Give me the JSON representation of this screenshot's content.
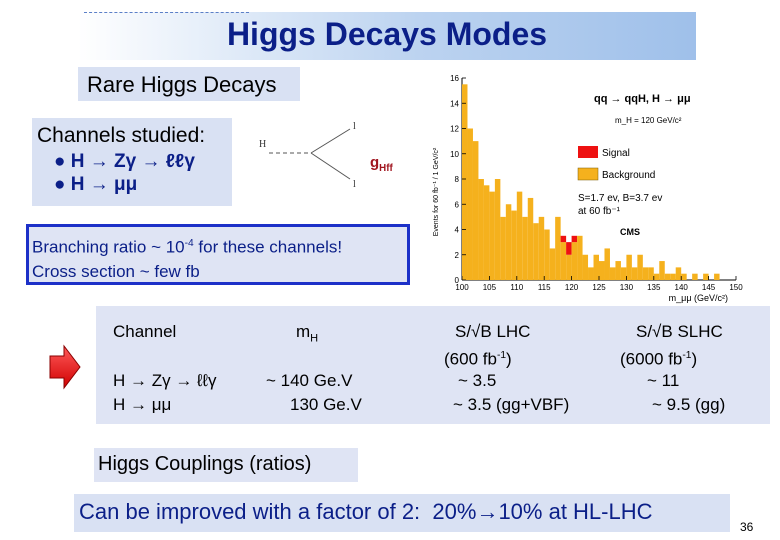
{
  "header": {
    "title": "Higgs Decays Modes"
  },
  "rare_label": "Rare Higgs Decays",
  "channels": {
    "title": "Channels studied:",
    "items": [
      "H → Zγ → ℓℓγ",
      "H → μμ"
    ]
  },
  "feynman": {
    "incoming": "H",
    "out_top": "l",
    "out_bottom": "l",
    "coupling": "g",
    "coupling_sub": "Hff"
  },
  "branching": {
    "line1_a": "Branching ratio ~ 10",
    "line1_exp": "-4",
    "line1_b": " for these channels!",
    "line2": "Cross section ~ few fb"
  },
  "table": {
    "headers": {
      "channel": "Channel",
      "mass": "m",
      "mass_sub": "H",
      "lhc": "S/√B  LHC",
      "lhc_lumi_a": "(600 fb",
      "lhc_lumi_exp": "-1",
      "lhc_lumi_b": ")",
      "slhc": "S/√B  SLHC",
      "slhc_lumi_a": "(6000 fb",
      "slhc_lumi_exp": "-1",
      "slhc_lumi_b": ")"
    },
    "rows": [
      {
        "channel": "H → Zγ → ℓℓγ",
        "mass": "~ 140 Ge.V",
        "lhc": "~ 3.5",
        "slhc": "~ 11"
      },
      {
        "channel": "H → μμ",
        "mass": "130 Ge.V",
        "lhc": "~ 3.5 (gg+VBF)",
        "slhc": "~ 9.5 (gg)"
      }
    ]
  },
  "couplings_label": "Higgs Couplings (ratios)",
  "improve": {
    "text": "Can be improved with a factor of 2:",
    "result": "20%→10% at HL-LHC"
  },
  "page_number": "36",
  "chart_data": {
    "type": "bar",
    "title": "qq → qqH, H → μμ",
    "subtitle": "m_H = 120 GeV/c²",
    "ylabel": "Events for 60 fb⁻¹ / 1 GeV/c²",
    "xlabel": "m_μμ (GeV/c²)",
    "xlim": [
      100,
      150
    ],
    "ylim": [
      0,
      16
    ],
    "xticks": [
      "100",
      "105",
      "110",
      "115",
      "120",
      "125",
      "130",
      "135",
      "140",
      "145",
      "150"
    ],
    "yticks": [
      "0",
      "2",
      "4",
      "6",
      "8",
      "10",
      "12",
      "14",
      "16"
    ],
    "legend": {
      "placement": "top-right",
      "signal": "Signal",
      "background": "Background"
    },
    "annotations": [
      "S=1.7 ev, B=3.7 ev",
      "at 60 fb⁻¹",
      "CMS"
    ],
    "colors": {
      "signal": "#ee1111",
      "background": "#f5b11d"
    },
    "bin_low": [
      100,
      101,
      102,
      103,
      104,
      105,
      106,
      107,
      108,
      109,
      110,
      111,
      112,
      113,
      114,
      115,
      116,
      117,
      118,
      119,
      120,
      121,
      122,
      123,
      124,
      125,
      126,
      127,
      128,
      129,
      130,
      131,
      132,
      133,
      134,
      135,
      136,
      137,
      138,
      139,
      140,
      141,
      142,
      143,
      144,
      145,
      146,
      147,
      148,
      149
    ],
    "background": [
      15.5,
      12,
      11,
      8,
      7.5,
      7,
      8,
      5,
      6,
      5.5,
      7,
      5,
      6.5,
      4.5,
      5,
      4,
      2.5,
      5,
      3,
      2,
      3,
      3.5,
      2,
      1,
      2,
      1.5,
      2.5,
      1,
      1.5,
      1,
      2,
      1,
      2,
      1,
      1,
      0.5,
      1.5,
      0.5,
      0.5,
      1,
      0.5,
      0,
      0.5,
      0,
      0.5,
      0,
      0.5,
      0,
      0,
      0
    ],
    "signal": [
      0,
      0,
      0,
      0,
      0,
      0,
      0,
      0,
      0,
      0,
      0,
      0,
      0,
      0,
      0,
      0,
      0,
      0,
      0.5,
      1,
      0.5,
      0,
      0,
      0,
      0,
      0,
      0,
      0,
      0,
      0,
      0,
      0,
      0,
      0,
      0,
      0,
      0,
      0,
      0,
      0,
      0,
      0,
      0,
      0,
      0,
      0,
      0,
      0,
      0,
      0
    ]
  }
}
